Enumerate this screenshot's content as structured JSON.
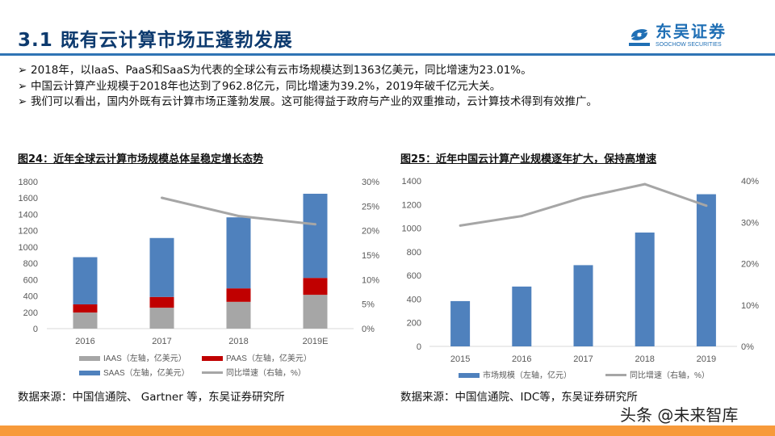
{
  "header": {
    "title": "3.1 既有云计算市场正蓬勃发展",
    "logo_cn": "东吴证券",
    "logo_en": "SOOCHOW SECURITIES",
    "accent": "#2f74b5"
  },
  "bullets": [
    "2018年，以IaaS、PaaS和SaaS为代表的全球公有云市场规模达到1363亿美元，同比增速为23.01%。",
    "中国云计算产业规模于2018年也达到了962.8亿元，同比增速为39.2%，2019年破千亿元大关。",
    "我们可以看出，国内外既有云计算市场正蓬勃发展。这可能得益于政府与产业的双重推动，云计算技术得到有效推广。"
  ],
  "bullet_icon": "arrow-bullet-icon",
  "chart_data": [
    {
      "type": "bar",
      "stacked": true,
      "title": "图24：近年全球云计算市场规模总体呈稳定增长态势",
      "categories": [
        "2016",
        "2017",
        "2018",
        "2019E"
      ],
      "ylim": [
        0,
        1800
      ],
      "yticks": [
        "0",
        "200",
        "400",
        "600",
        "800",
        "1000",
        "1200",
        "1400",
        "1600",
        "1800"
      ],
      "y2lim": [
        0,
        30
      ],
      "y2ticks": [
        "0%",
        "5%",
        "10%",
        "15%",
        "20%",
        "25%",
        "30%"
      ],
      "series": [
        {
          "name": "IAAS（左轴，亿美元）",
          "color": "#a6a6a6",
          "values": [
            197,
            256,
            328,
            414
          ]
        },
        {
          "name": "PAAS（左轴，亿美元）",
          "color": "#c00000",
          "values": [
            100,
            132,
            165,
            207
          ]
        },
        {
          "name": "SAAS（左轴，亿美元）",
          "color": "#4f81bd",
          "values": [
            578,
            722,
            870,
            1031
          ]
        },
        {
          "name": "同比增速（右轴，%）",
          "type": "line",
          "axis": "right",
          "color": "#a6a6a6",
          "values": [
            null,
            26.7,
            23.0,
            21.3
          ]
        }
      ],
      "legend": "bottom",
      "source": "数据来源：中国信通院、 Gartner 等，东吴证券研究所"
    },
    {
      "type": "bar",
      "title": "图25：近年中国云计算产业规模逐年扩大，保持高增速",
      "categories": [
        "2015",
        "2016",
        "2017",
        "2018",
        "2019"
      ],
      "ylim": [
        0,
        1400
      ],
      "yticks": [
        "0",
        "200",
        "400",
        "600",
        "800",
        "1000",
        "1200",
        "1400"
      ],
      "y2lim": [
        0,
        40
      ],
      "y2ticks": [
        "0%",
        "10%",
        "20%",
        "30%",
        "40%"
      ],
      "series": [
        {
          "name": "市场规模（左轴，亿元）",
          "color": "#4f81bd",
          "values": [
            383,
            506,
            687,
            962.8,
            1287
          ]
        },
        {
          "name": "同比增速（右轴，%）",
          "type": "line",
          "axis": "right",
          "color": "#a6a6a6",
          "values": [
            29.2,
            31.5,
            36.0,
            39.2,
            34.0
          ]
        }
      ],
      "legend": "bottom",
      "source": "数据来源：中国信通院、IDC等，东吴证券研究所"
    }
  ],
  "watermark": "头条 @未来智库",
  "footer_color": "#f79a3a"
}
